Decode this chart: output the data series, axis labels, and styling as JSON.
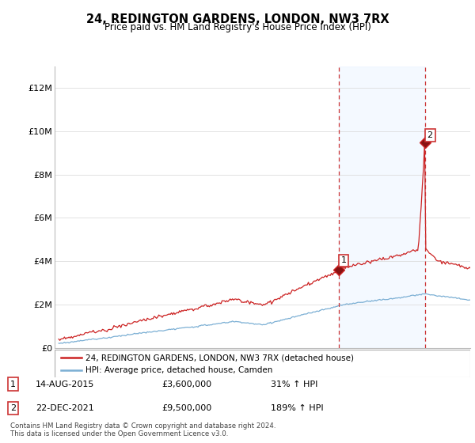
{
  "title": "24, REDINGTON GARDENS, LONDON, NW3 7RX",
  "subtitle": "Price paid vs. HM Land Registry's House Price Index (HPI)",
  "ylabel_ticks": [
    "£0",
    "£2M",
    "£4M",
    "£6M",
    "£8M",
    "£10M",
    "£12M"
  ],
  "ylim": [
    0,
    13000000
  ],
  "ytick_vals": [
    0,
    2000000,
    4000000,
    6000000,
    8000000,
    10000000,
    12000000
  ],
  "sale1_date": 2015.62,
  "sale1_price": 3600000,
  "sale2_date": 2021.98,
  "sale2_price": 9500000,
  "hpi_color": "#7bafd4",
  "price_color": "#cc2222",
  "shading_color": "#ddeeff",
  "vline_color": "#cc3333",
  "legend_line1": "24, REDINGTON GARDENS, LONDON, NW3 7RX (detached house)",
  "legend_line2": "HPI: Average price, detached house, Camden",
  "footer": "Contains HM Land Registry data © Crown copyright and database right 2024.\nThis data is licensed under the Open Government Licence v3.0."
}
